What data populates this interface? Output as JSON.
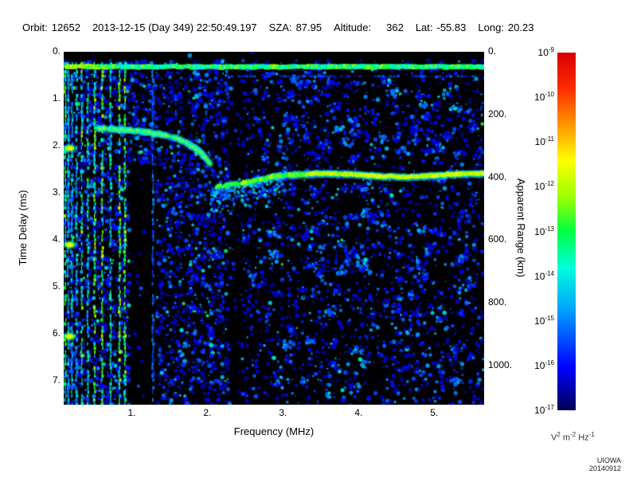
{
  "header": {
    "fields": [
      {
        "label": "Orbit:",
        "value": "12652"
      },
      {
        "label": "",
        "value": "2013-12-15 (Day 349) 22:50:49.197"
      },
      {
        "label": "SZA:",
        "value": "87.95"
      },
      {
        "label": "Altitude:",
        "value": "362",
        "value_gap": 14
      },
      {
        "label": "Lat:",
        "value": "-55.83"
      },
      {
        "label": "Long:",
        "value": "20.23"
      }
    ]
  },
  "chart_data": {
    "type": "heatmap",
    "title": "",
    "xlabel": "Frequency (MHz)",
    "ylabel_left": "Time Delay (ms)",
    "ylabel_right": "Apparent Range (km)",
    "x_range_mhz": [
      0.1,
      5.66
    ],
    "y_range_ms": [
      0,
      7.5
    ],
    "km_per_ms": 150,
    "x_ticks": [
      {
        "value": 1,
        "label": "1."
      },
      {
        "value": 2,
        "label": "2."
      },
      {
        "value": 3,
        "label": "3."
      },
      {
        "value": 4,
        "label": "4."
      },
      {
        "value": 5,
        "label": "5."
      }
    ],
    "y_left_ticks": [
      {
        "value": 0,
        "label": "0."
      },
      {
        "value": 1,
        "label": "1."
      },
      {
        "value": 2,
        "label": "2."
      },
      {
        "value": 3,
        "label": "3."
      },
      {
        "value": 4,
        "label": "4."
      },
      {
        "value": 5,
        "label": "5."
      },
      {
        "value": 6,
        "label": "6."
      },
      {
        "value": 7,
        "label": "7."
      }
    ],
    "y_right_ticks_km": [
      {
        "value": 0,
        "label": "0."
      },
      {
        "value": 200,
        "label": "200."
      },
      {
        "value": 400,
        "label": "400."
      },
      {
        "value": 600,
        "label": "600."
      },
      {
        "value": 800,
        "label": "800."
      },
      {
        "value": 1000,
        "label": "1000."
      }
    ],
    "colorbar": {
      "scale": "log",
      "tick_base": "10",
      "tick_exponents": [
        "-9",
        "-10",
        "-11",
        "-12",
        "-13",
        "-14",
        "-15",
        "-16",
        "-17"
      ],
      "unit_parts": [
        {
          "base": "V",
          "exp": "2"
        },
        {
          "base": "m",
          "exp": "-2"
        },
        {
          "base": "Hz",
          "exp": "-1"
        }
      ],
      "gradient_stops": [
        {
          "pos": 0.0,
          "color": "#000055"
        },
        {
          "pos": 0.12,
          "color": "#0000ff"
        },
        {
          "pos": 0.28,
          "color": "#00a0ff"
        },
        {
          "pos": 0.4,
          "color": "#00ffdc"
        },
        {
          "pos": 0.5,
          "color": "#00ff46"
        },
        {
          "pos": 0.6,
          "color": "#a0ff00"
        },
        {
          "pos": 0.7,
          "color": "#ffff00"
        },
        {
          "pos": 0.8,
          "color": "#ff9600"
        },
        {
          "pos": 0.9,
          "color": "#ff2d00"
        },
        {
          "pos": 1.0,
          "color": "#d70000"
        }
      ]
    },
    "features": {
      "top_band_ms": 0.3,
      "plasma_resonance_mhz": 0.18,
      "plasma_harmonic_blobs_ms": [
        2.05,
        4.1,
        6.05
      ],
      "electron_plasma_stripes_mhz": [
        0.12,
        0.16,
        0.21,
        0.27,
        0.34,
        0.42,
        0.51,
        0.61,
        0.72,
        0.84,
        0.91,
        1.28
      ],
      "ionospheric_trace": {
        "f_start_mhz": 0.55,
        "f_end_mhz": 2.05,
        "t_start_ms": 1.62,
        "t_end_ms": 2.4
      },
      "surface_trace": {
        "f_start_mhz": 2.12,
        "f_end_mhz": 5.66,
        "t_ms": 2.62
      },
      "dark_columns_mhz": [
        [
          0.97,
          1.33
        ],
        [
          2.29,
          2.45
        ]
      ]
    }
  },
  "footer": {
    "credit": "UIOWA 20140912"
  }
}
